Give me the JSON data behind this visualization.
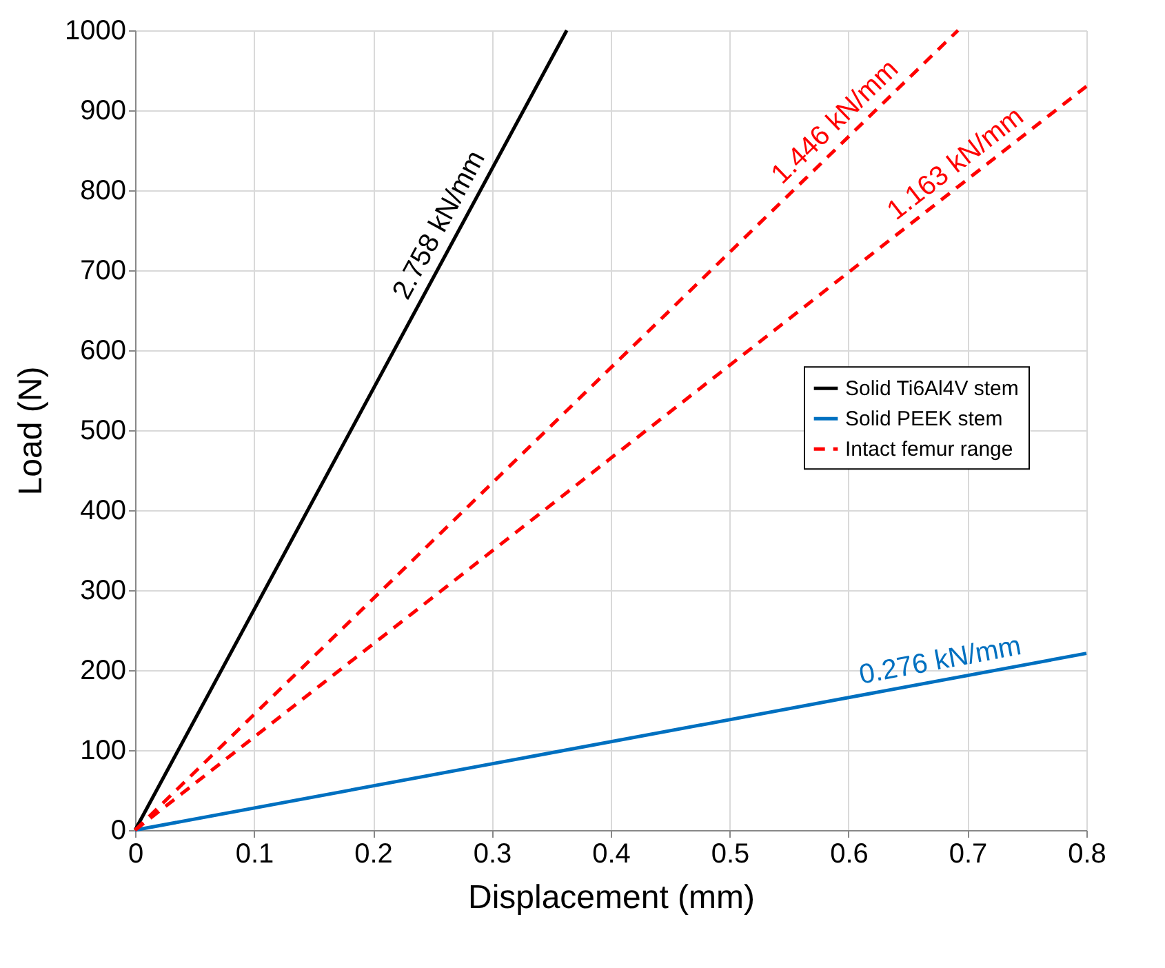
{
  "chart_data": {
    "type": "line",
    "xlabel": "Displacement (mm)",
    "ylabel": "Load (N)",
    "xlim": [
      0,
      0.8
    ],
    "ylim": [
      0,
      1000
    ],
    "xticks": [
      0,
      0.1,
      0.2,
      0.3,
      0.4,
      0.5,
      0.6,
      0.7,
      0.8
    ],
    "yticks": [
      0,
      100,
      200,
      300,
      400,
      500,
      600,
      700,
      800,
      900,
      1000
    ],
    "grid": true,
    "legend": "right",
    "marker": "none",
    "series": [
      {
        "name": "Solid Ti6Al4V stem",
        "color": "#000000",
        "line_style": "solid",
        "x": [
          0,
          0.363
        ],
        "values": [
          0,
          1000
        ]
      },
      {
        "name": "Solid PEEK stem",
        "color": "#0070c0",
        "line_style": "solid",
        "x": [
          0,
          0.8
        ],
        "values": [
          0,
          221
        ]
      },
      {
        "name": "Intact femur range",
        "color": "#ff0000",
        "line_style": "dashed",
        "x": [
          0,
          0.692
        ],
        "values": [
          0,
          1000
        ]
      },
      {
        "color": "#ff0000",
        "line_style": "dashed",
        "x": [
          0,
          0.8
        ],
        "values": [
          0,
          930
        ]
      }
    ],
    "annotations": [
      {
        "text": "2.758 kN/mm",
        "x": 0.27,
        "y": 745
      },
      {
        "text": "1.446 kN/mm",
        "x": 0.6,
        "y": 868
      },
      {
        "text": "1.163 kN/mm",
        "x": 0.7,
        "y": 814
      },
      {
        "text": "0.276 kN/mm",
        "x": 0.68,
        "y": 188
      }
    ]
  }
}
